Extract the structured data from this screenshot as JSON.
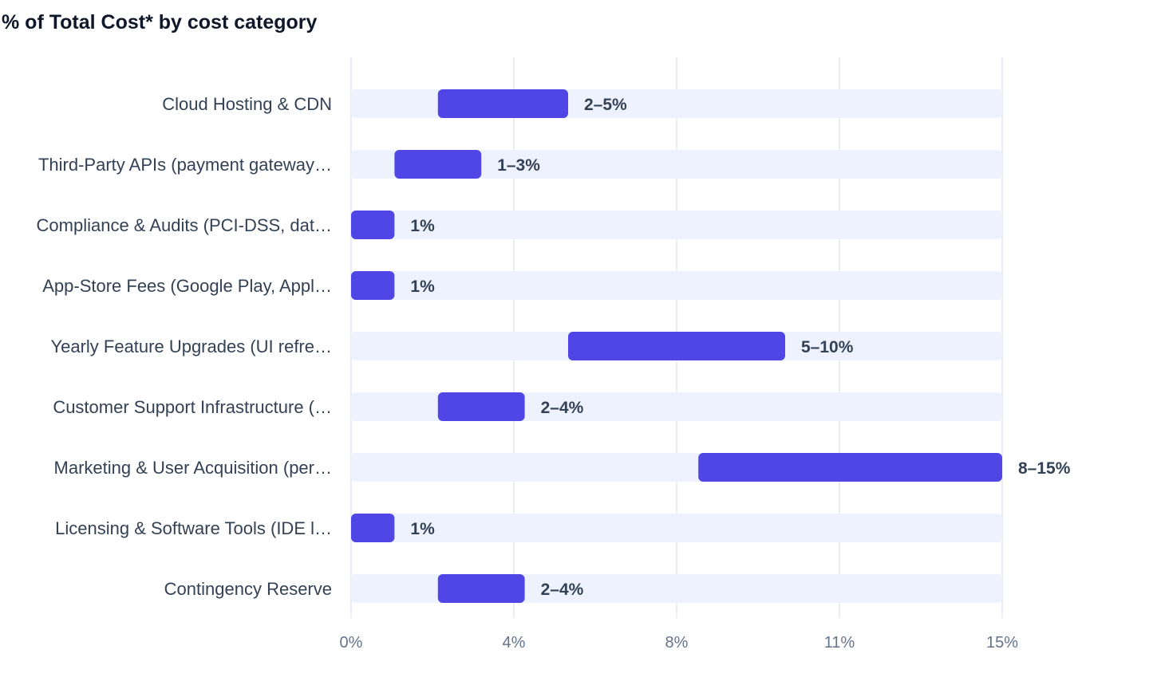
{
  "chart_data": {
    "type": "bar",
    "title": "% of Total Cost* by cost category",
    "orientation": "horizontal",
    "range_bars": true,
    "categories": [
      "Cloud Hosting & CDN",
      "Third-Party APIs (payment gateway…",
      "Compliance & Audits (PCI-DSS, dat…",
      "App-Store Fees (Google Play, Appl…",
      "Yearly Feature Upgrades (UI refre…",
      "Customer Support Infrastructure (…",
      "Marketing & User Acquisition (per…",
      "Licensing & Software Tools (IDE l…",
      "Contingency Reserve"
    ],
    "series": [
      {
        "ranges": [
          [
            2,
            5
          ],
          [
            1,
            3
          ],
          [
            0,
            1
          ],
          [
            0,
            1
          ],
          [
            5,
            10
          ],
          [
            2,
            4
          ],
          [
            8,
            15
          ],
          [
            0,
            1
          ],
          [
            2,
            4
          ]
        ],
        "labels": [
          "2–5%",
          "1–3%",
          "1%",
          "1%",
          "5–10%",
          "2–4%",
          "8–15%",
          "1%",
          "2–4%"
        ]
      }
    ],
    "xlim": [
      0,
      15
    ],
    "x_ticks": [
      {
        "value": 0,
        "label": "0%"
      },
      {
        "value": 3.75,
        "label": "4%"
      },
      {
        "value": 7.5,
        "label": "8%"
      },
      {
        "value": 11.25,
        "label": "11%"
      },
      {
        "value": 15,
        "label": "15%"
      }
    ],
    "xlabel": "",
    "ylabel": "",
    "grid": true,
    "legend": "none",
    "colors": {
      "bar": "#4f46e5",
      "track": "#eef2ff",
      "grid": "#e2e8f0",
      "title": "#0f172a",
      "label": "#334155",
      "tick": "#64748b"
    }
  }
}
